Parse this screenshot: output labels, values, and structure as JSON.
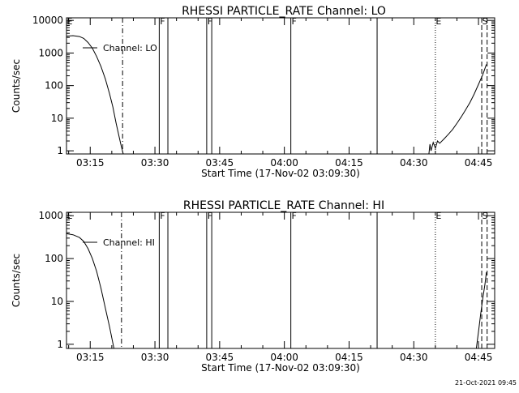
{
  "footer": {
    "timestamp": "21-Oct-2021 09:45"
  },
  "line_color": "#000000",
  "chart_data": [
    {
      "type": "line",
      "title": "RHESSI PARTICLE_RATE Channel: LO",
      "xlabel": "Start Time (17-Nov-02 03:09:30)",
      "ylabel": "Counts/sec",
      "yscale": "log",
      "xlim": [
        "03:09:30",
        "04:48:45"
      ],
      "ylim": [
        0.8,
        12000
      ],
      "x_ticks": [
        "03:15",
        "03:30",
        "03:45",
        "04:00",
        "04:15",
        "04:30",
        "04:45"
      ],
      "y_ticks": [
        "1",
        "10",
        "100",
        "1000",
        "10000"
      ],
      "series": [
        {
          "name": "Channel: LO",
          "segments": [
            [
              [
                "03:09:30",
                3300
              ],
              [
                "03:11:00",
                3400
              ],
              [
                "03:12:30",
                3200
              ],
              [
                "03:13:30",
                2800
              ],
              [
                "03:14:30",
                2100
              ],
              [
                "03:15:30",
                1400
              ],
              [
                "03:16:30",
                780
              ],
              [
                "03:17:30",
                380
              ],
              [
                "03:18:30",
                160
              ],
              [
                "03:19:30",
                55
              ],
              [
                "03:20:15",
                22
              ],
              [
                "03:21:00",
                7
              ],
              [
                "03:21:45",
                2.5
              ],
              [
                "03:22:15",
                1.3
              ],
              [
                "03:22:40",
                0.8
              ]
            ],
            [
              [
                "04:33:30",
                0.8
              ],
              [
                "04:33:45",
                1.6
              ],
              [
                "04:34:00",
                1.0
              ],
              [
                "04:34:30",
                1.8
              ],
              [
                "04:35:00",
                1.2
              ],
              [
                "04:35:30",
                2.0
              ],
              [
                "04:36:00",
                1.7
              ],
              [
                "04:37:00",
                2.3
              ],
              [
                "04:38:00",
                3.2
              ],
              [
                "04:39:00",
                4.5
              ],
              [
                "04:40:00",
                7
              ],
              [
                "04:41:00",
                11
              ],
              [
                "04:42:00",
                18
              ],
              [
                "04:43:00",
                30
              ],
              [
                "04:44:00",
                55
              ],
              [
                "04:45:00",
                110
              ],
              [
                "04:46:00",
                220
              ],
              [
                "04:46:50",
                450
              ]
            ]
          ]
        }
      ],
      "markers": [
        {
          "label": "E",
          "time": "03:09:30",
          "style": "dotted"
        },
        {
          "label": "",
          "time": "03:22:30",
          "style": "dashdot"
        },
        {
          "label": "F",
          "time": "03:31:00",
          "style": "solid"
        },
        {
          "label": "",
          "time": "03:33:00",
          "style": "solid"
        },
        {
          "label": "F",
          "time": "03:42:00",
          "style": "solid"
        },
        {
          "label": "",
          "time": "03:43:10",
          "style": "solid"
        },
        {
          "label": "F",
          "time": "04:01:30",
          "style": "solid"
        },
        {
          "label": "",
          "time": "04:21:30",
          "style": "solid"
        },
        {
          "label": "E",
          "time": "04:35:00",
          "style": "dotted"
        },
        {
          "label": "S",
          "time": "04:45:45",
          "style": "dashed"
        },
        {
          "label": "",
          "time": "04:47:00",
          "style": "dashed"
        }
      ],
      "legend_position": "top-left"
    },
    {
      "type": "line",
      "title": "RHESSI PARTICLE_RATE Channel: HI",
      "xlabel": "Start Time (17-Nov-02 03:09:30)",
      "ylabel": "Counts/sec",
      "yscale": "log",
      "xlim": [
        "03:09:30",
        "04:48:45"
      ],
      "ylim": [
        0.8,
        1200
      ],
      "x_ticks": [
        "03:15",
        "03:30",
        "03:45",
        "04:00",
        "04:15",
        "04:30",
        "04:45"
      ],
      "y_ticks": [
        "1",
        "10",
        "100",
        "1000"
      ],
      "series": [
        {
          "name": "Channel: HI",
          "segments": [
            [
              [
                "03:09:30",
                380
              ],
              [
                "03:11:00",
                360
              ],
              [
                "03:12:30",
                310
              ],
              [
                "03:13:30",
                250
              ],
              [
                "03:14:30",
                170
              ],
              [
                "03:15:30",
                100
              ],
              [
                "03:16:30",
                50
              ],
              [
                "03:17:30",
                20
              ],
              [
                "03:18:30",
                7
              ],
              [
                "03:19:30",
                2.5
              ],
              [
                "03:20:30",
                0.8
              ]
            ],
            [
              [
                "04:44:30",
                0.8
              ],
              [
                "04:45:00",
                2
              ],
              [
                "04:45:30",
                5
              ],
              [
                "04:46:00",
                12
              ],
              [
                "04:46:30",
                25
              ],
              [
                "04:46:50",
                48
              ]
            ]
          ]
        }
      ],
      "markers": [
        {
          "label": "E",
          "time": "03:09:30",
          "style": "dotted"
        },
        {
          "label": "",
          "time": "03:22:15",
          "style": "dashdot"
        },
        {
          "label": "F",
          "time": "03:31:00",
          "style": "solid"
        },
        {
          "label": "",
          "time": "03:33:00",
          "style": "solid"
        },
        {
          "label": "F",
          "time": "03:42:00",
          "style": "solid"
        },
        {
          "label": "",
          "time": "03:43:10",
          "style": "solid"
        },
        {
          "label": "F",
          "time": "04:01:30",
          "style": "solid"
        },
        {
          "label": "",
          "time": "04:21:30",
          "style": "solid"
        },
        {
          "label": "E",
          "time": "04:35:00",
          "style": "dotted"
        },
        {
          "label": "S",
          "time": "04:45:45",
          "style": "dashed"
        },
        {
          "label": "",
          "time": "04:47:00",
          "style": "dashed"
        }
      ],
      "legend_position": "top-left"
    }
  ]
}
